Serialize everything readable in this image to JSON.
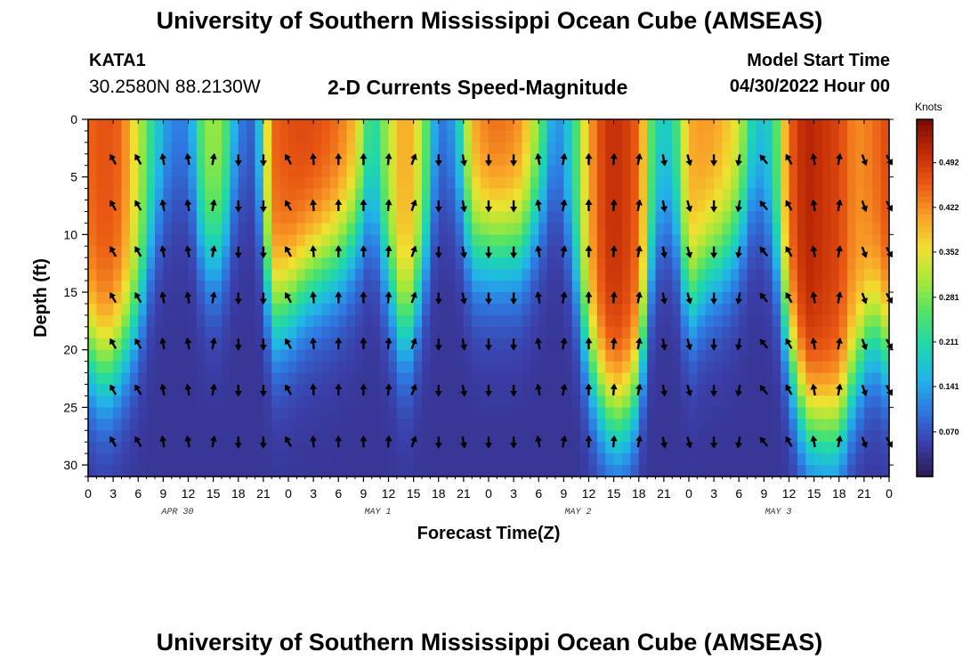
{
  "header": {
    "title": "University of Southern Mississippi Ocean Cube (AMSEAS)",
    "station_id": "KATA1",
    "coords": "30.2580N  88.2130W",
    "subtitle": "2-D Currents Speed-Magnitude",
    "model_start_label": "Model Start Time",
    "model_start_value": "04/30/2022 Hour 00"
  },
  "footer": {
    "title": "University of Southern Mississippi Ocean Cube (AMSEAS)"
  },
  "colors": {
    "colormap": [
      "#2b1b52",
      "#3b3ea8",
      "#2f77e0",
      "#22b4e8",
      "#1dd6b0",
      "#4ee26a",
      "#a6e83a",
      "#f0e130",
      "#f9a128",
      "#ea5a14",
      "#bf2a05",
      "#7a0a03"
    ]
  },
  "chart_data": {
    "type": "heatmap",
    "title": "2-D Currents Speed-Magnitude",
    "xlabel": "Forecast Time(Z)",
    "ylabel": "Depth (ft)",
    "x_range": [
      0,
      96
    ],
    "y_range": [
      0,
      31
    ],
    "x_ticks": [
      0,
      3,
      6,
      9,
      12,
      15,
      18,
      21,
      24,
      27,
      30,
      33,
      36,
      39,
      42,
      45,
      48,
      51,
      54,
      57,
      60,
      63,
      66,
      69,
      72,
      75,
      78,
      81,
      84,
      87,
      90,
      93,
      96
    ],
    "x_tick_labels": [
      "0",
      "3",
      "6",
      "9",
      "12",
      "15",
      "18",
      "21",
      "0",
      "3",
      "6",
      "9",
      "12",
      "15",
      "18",
      "21",
      "0",
      "3",
      "6",
      "9",
      "12",
      "15",
      "18",
      "21",
      "0",
      "3",
      "6",
      "9",
      "12",
      "15",
      "18",
      "21",
      "0"
    ],
    "y_ticks": [
      0,
      5,
      10,
      15,
      20,
      25,
      30
    ],
    "day_labels": [
      {
        "text": "APR 30",
        "x": 12
      },
      {
        "text": "MAY 1",
        "x": 36
      },
      {
        "text": "MAY 2",
        "x": 60
      },
      {
        "text": "MAY 3",
        "x": 84
      }
    ],
    "colorbar": {
      "label": "Knots",
      "range": [
        0.0,
        0.56
      ],
      "ticks": [
        0.07,
        0.141,
        0.211,
        0.281,
        0.352,
        0.422,
        0.492
      ],
      "tick_labels": [
        "0.070",
        "0.141",
        "0.211",
        "0.281",
        "0.352",
        "0.422",
        "0.492"
      ]
    },
    "time_profile": {
      "hours": [
        0,
        2,
        4,
        6,
        8,
        10,
        12,
        14,
        16,
        18,
        20,
        22,
        24,
        26,
        28,
        30,
        32,
        34,
        36,
        38,
        40,
        42,
        44,
        46,
        48,
        50,
        52,
        54,
        56,
        58,
        60,
        62,
        64,
        66,
        68,
        70,
        72,
        74,
        76,
        78,
        80,
        82,
        84,
        86,
        88,
        90,
        92,
        94,
        96
      ],
      "surface_speed_kt": [
        0.45,
        0.47,
        0.45,
        0.33,
        0.2,
        0.12,
        0.12,
        0.3,
        0.3,
        0.12,
        0.08,
        0.45,
        0.47,
        0.48,
        0.47,
        0.45,
        0.4,
        0.2,
        0.32,
        0.42,
        0.32,
        0.1,
        0.15,
        0.4,
        0.45,
        0.45,
        0.42,
        0.3,
        0.12,
        0.2,
        0.4,
        0.5,
        0.5,
        0.45,
        0.2,
        0.2,
        0.4,
        0.42,
        0.4,
        0.35,
        0.18,
        0.2,
        0.45,
        0.52,
        0.5,
        0.48,
        0.42,
        0.44,
        0.48
      ],
      "extent_ft": [
        20,
        22,
        20,
        17,
        10,
        6,
        6,
        12,
        12,
        6,
        6,
        17,
        16,
        14,
        13,
        12,
        10,
        8,
        14,
        19,
        14,
        6,
        6,
        11,
        11,
        11,
        11,
        8,
        5,
        12,
        21,
        25,
        26,
        23,
        10,
        8,
        16,
        13,
        12,
        10,
        6,
        10,
        20,
        26,
        27,
        27,
        22,
        18,
        20
      ]
    },
    "vectors": {
      "hours": [
        3,
        6,
        9,
        12,
        15,
        18,
        21,
        24,
        27,
        30,
        33,
        36,
        39,
        42,
        45,
        48,
        51,
        54,
        57,
        60,
        63,
        66,
        69,
        72,
        75,
        78,
        81,
        84,
        87,
        90,
        93,
        96
      ],
      "depths_ft": [
        3.5,
        7.5,
        11.5,
        15.5,
        19.5,
        23.5,
        28
      ],
      "direction_by_hour_deg": [
        330,
        330,
        350,
        350,
        10,
        180,
        180,
        330,
        355,
        0,
        0,
        5,
        20,
        180,
        170,
        180,
        180,
        350,
        10,
        0,
        5,
        10,
        170,
        165,
        180,
        190,
        320,
        330,
        350,
        10,
        160,
        150
      ]
    }
  }
}
